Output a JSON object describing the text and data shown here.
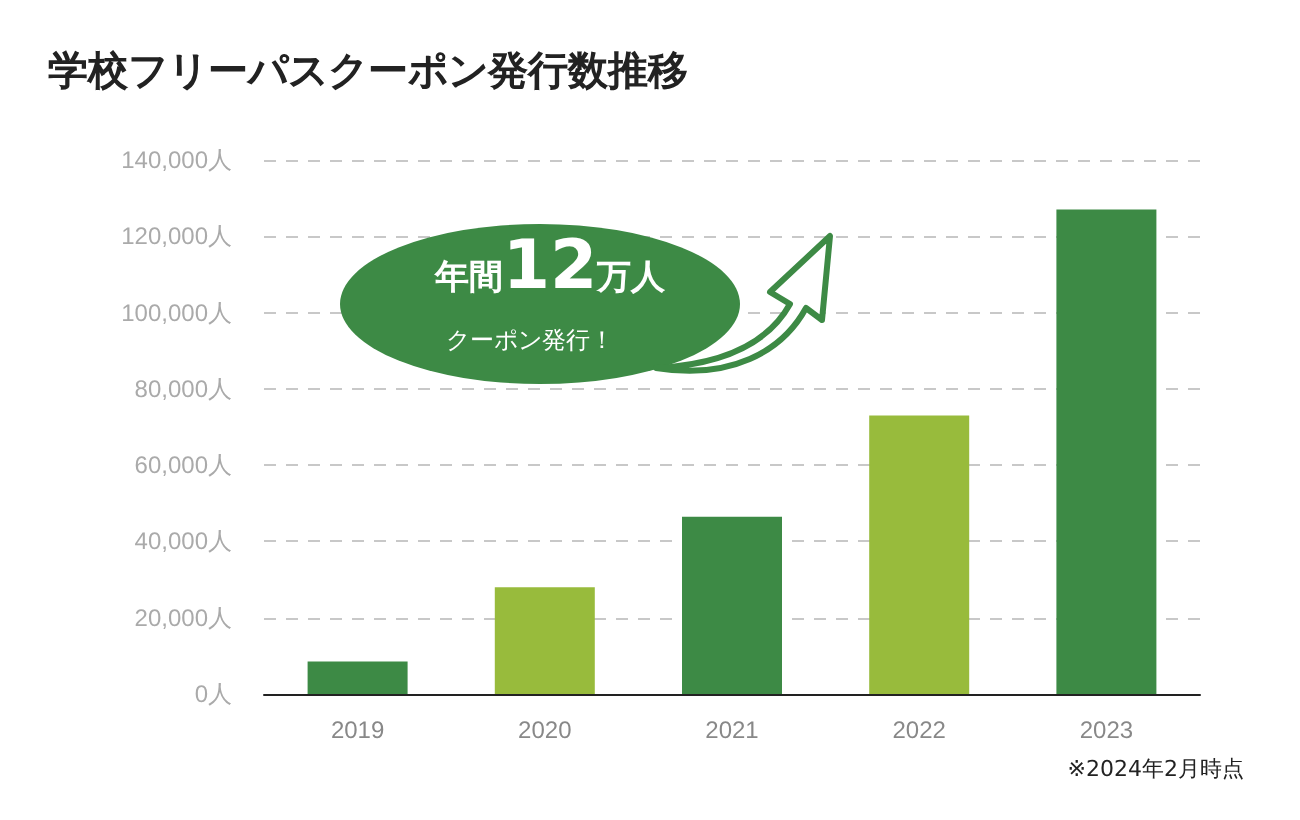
{
  "chart_data": {
    "type": "bar",
    "title": "学校フリーパスクーポン発行数推移",
    "categories": [
      "2019",
      "2020",
      "2021",
      "2022",
      "2023"
    ],
    "values": [
      8500,
      28000,
      46500,
      73000,
      127000
    ],
    "colors": [
      "#3d8a45",
      "#98bb3c",
      "#3d8a45",
      "#98bb3c",
      "#3d8a45"
    ],
    "ylim": [
      0,
      140000
    ],
    "yticks": [
      {
        "value": 0,
        "label": "0人"
      },
      {
        "value": 20000,
        "label": "20,000人"
      },
      {
        "value": 40000,
        "label": "40,000人"
      },
      {
        "value": 60000,
        "label": "60,000人"
      },
      {
        "value": 80000,
        "label": "80,000人"
      },
      {
        "value": 100000,
        "label": "100,000人"
      },
      {
        "value": 120000,
        "label": "120,000人"
      },
      {
        "value": 140000,
        "label": "140,000人"
      }
    ],
    "grid": "y",
    "annotations": [
      "年間12万人",
      "クーポン発行！",
      "※2024年2月時点"
    ]
  }
}
